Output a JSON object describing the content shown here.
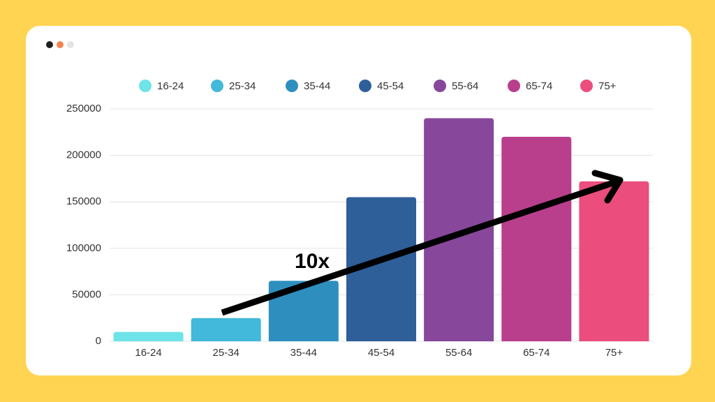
{
  "chart_data": {
    "type": "bar",
    "categories": [
      "16-24",
      "25-34",
      "35-44",
      "45-54",
      "55-64",
      "65-74",
      "75+"
    ],
    "values": [
      10000,
      25000,
      65000,
      155000,
      240000,
      220000,
      172000
    ],
    "colors": [
      "#6ee3e8",
      "#42b9da",
      "#2e8fbf",
      "#2e5f99",
      "#87479b",
      "#b93f8d",
      "#eb4d7d"
    ],
    "ylim": [
      0,
      250000
    ],
    "yticks": [
      0,
      50000,
      100000,
      150000,
      200000,
      250000
    ],
    "grid": true,
    "legend": "top",
    "annotation": "10x"
  }
}
